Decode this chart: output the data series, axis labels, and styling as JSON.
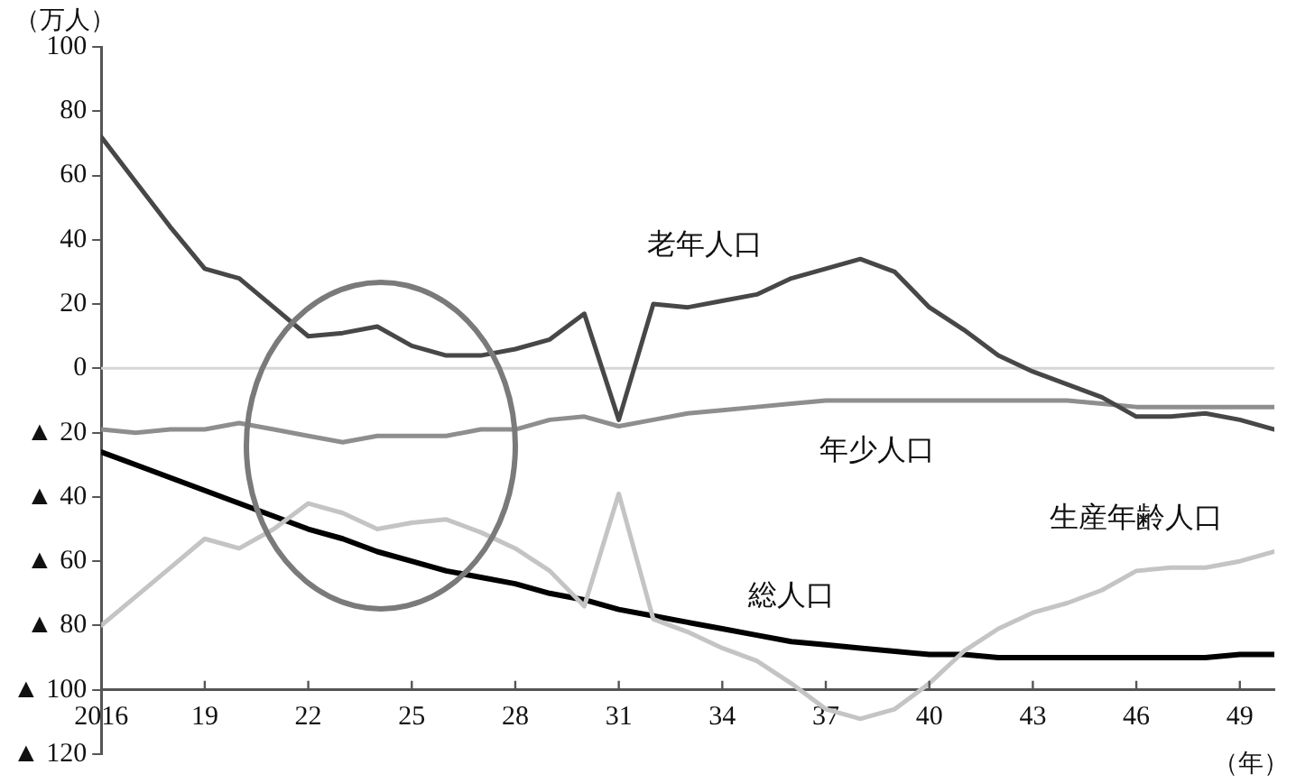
{
  "chart_data": {
    "type": "line",
    "xlabel": "（年）",
    "ylabel": "（万人）",
    "x": [
      2016,
      2017,
      2018,
      2019,
      2020,
      2021,
      2022,
      2023,
      2024,
      2025,
      2026,
      2027,
      2028,
      2029,
      2030,
      2031,
      2032,
      2033,
      2034,
      2035,
      2036,
      2037,
      2038,
      2039,
      2040,
      2041,
      2042,
      2043,
      2044,
      2045,
      2046,
      2047,
      2048,
      2049,
      2050
    ],
    "xlim": [
      2016,
      2050
    ],
    "xticks": [
      {
        "value": 2016,
        "label": "2016"
      },
      {
        "value": 2019,
        "label": "19"
      },
      {
        "value": 2022,
        "label": "22"
      },
      {
        "value": 2025,
        "label": "25"
      },
      {
        "value": 2028,
        "label": "28"
      },
      {
        "value": 2031,
        "label": "31"
      },
      {
        "value": 2034,
        "label": "34"
      },
      {
        "value": 2037,
        "label": "37"
      },
      {
        "value": 2040,
        "label": "40"
      },
      {
        "value": 2043,
        "label": "43"
      },
      {
        "value": 2046,
        "label": "46"
      },
      {
        "value": 2049,
        "label": "49"
      }
    ],
    "ylim": [
      -120,
      100
    ],
    "yticks": [
      {
        "value": -120,
        "label": "▲ 120"
      },
      {
        "value": -100,
        "label": "▲ 100"
      },
      {
        "value": -80,
        "label": "▲ 80"
      },
      {
        "value": -60,
        "label": "▲ 60"
      },
      {
        "value": -40,
        "label": "▲ 40"
      },
      {
        "value": -20,
        "label": "▲ 20"
      },
      0,
      20,
      40,
      60,
      80,
      100
    ],
    "ref_lines": [
      {
        "axis": "y",
        "value": 0,
        "color": "#d6d6d6"
      }
    ],
    "grid": false,
    "legend": false,
    "marker": "none",
    "line_style": "solid",
    "series": [
      {
        "name": "老年人口",
        "color": "#474747",
        "values": [
          72,
          58,
          44,
          31,
          28,
          19,
          10,
          11,
          13,
          7,
          4,
          4,
          6,
          9,
          17,
          -16,
          20,
          19,
          21,
          23,
          28,
          31,
          34,
          30,
          19,
          12,
          4,
          -1,
          -5,
          -9,
          -15,
          -15,
          -14,
          -16,
          -19
        ]
      },
      {
        "name": "年少人口",
        "color": "#8e8e8e",
        "values": [
          -19,
          -20,
          -19,
          -19,
          -17,
          -19,
          -21,
          -23,
          -21,
          -21,
          -21,
          -19,
          -19,
          -16,
          -15,
          -18,
          -16,
          -14,
          -13,
          -12,
          -11,
          -10,
          -10,
          -10,
          -10,
          -10,
          -10,
          -10,
          -10,
          -11,
          -12,
          -12,
          -12,
          -12,
          -12
        ]
      },
      {
        "name": "生産年齢人口",
        "color": "#c4c4c4",
        "values": [
          -80,
          -71,
          -62,
          -53,
          -56,
          -50,
          -42,
          -45,
          -50,
          -48,
          -47,
          -51,
          -56,
          -63,
          -74,
          -39,
          -78,
          -82,
          -87,
          -91,
          -98,
          -106,
          -109,
          -106,
          -98,
          -88,
          -81,
          -76,
          -73,
          -69,
          -63,
          -62,
          -62,
          -60,
          -57
        ]
      },
      {
        "name": "総人口",
        "color": "#000000",
        "values": [
          -26,
          -30,
          -34,
          -38,
          -42,
          -46,
          -50,
          -53,
          -57,
          -60,
          -63,
          -65,
          -67,
          -70,
          -72,
          -75,
          -77,
          -79,
          -81,
          -83,
          -85,
          -86,
          -87,
          -88,
          -89,
          -89,
          -90,
          -90,
          -90,
          -90,
          -90,
          -90,
          -90,
          -89,
          -89
        ]
      }
    ]
  }
}
